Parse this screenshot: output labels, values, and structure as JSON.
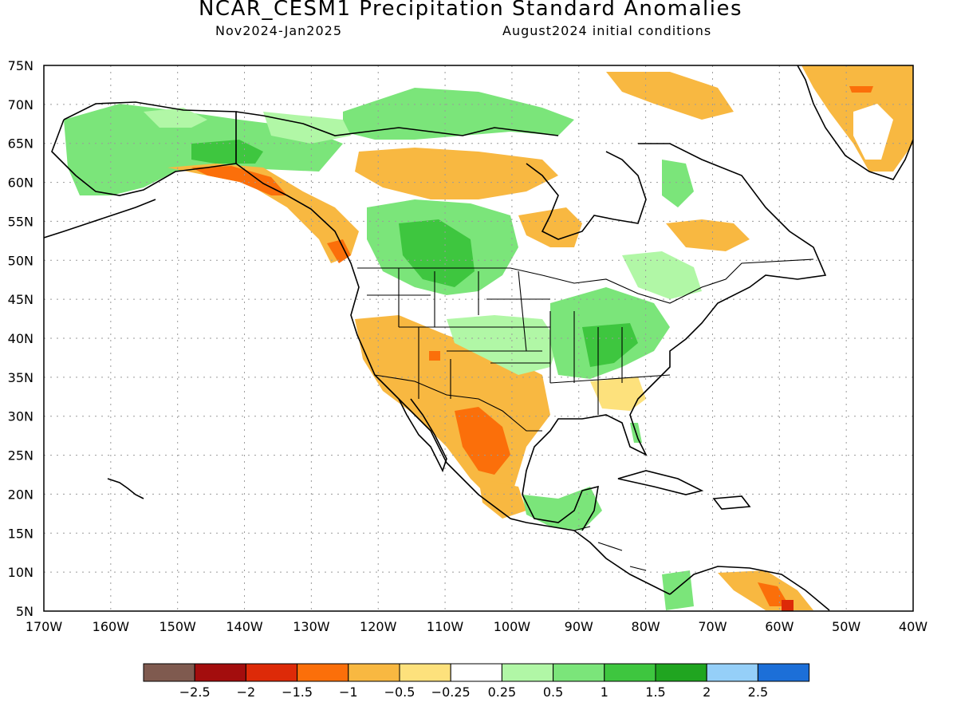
{
  "header": {
    "title": "NCAR_CESM1 Precipitation Standard Anomalies",
    "period": "Nov2024-Jan2025",
    "init": "August2024 initial conditions"
  },
  "axes": {
    "lat_labels": [
      "75N",
      "70N",
      "65N",
      "60N",
      "55N",
      "50N",
      "45N",
      "40N",
      "35N",
      "30N",
      "25N",
      "20N",
      "15N",
      "10N",
      "5N"
    ],
    "lon_labels": [
      "170W",
      "160W",
      "150W",
      "140W",
      "130W",
      "120W",
      "110W",
      "100W",
      "90W",
      "80W",
      "70W",
      "60W",
      "50W",
      "40W"
    ],
    "lat_range": [
      5,
      75
    ],
    "lon_range": [
      -170,
      -40
    ],
    "grid": "dotted"
  },
  "colorbar": {
    "colors": [
      "#7f5a4f",
      "#a30d0d",
      "#dd2a08",
      "#fb6f0a",
      "#f8b841",
      "#fde17c",
      "#ffffff",
      "#b1f7a6",
      "#7be57a",
      "#3ec63f",
      "#20a520",
      "#95cff8",
      "#1c6fd8"
    ],
    "labels": [
      "-2.5",
      "-2",
      "-1.5",
      "-1",
      "-0.5",
      "-0.25",
      "0.25",
      "0.5",
      "1",
      "1.5",
      "2",
      "2.5"
    ]
  },
  "anomaly_regions": [
    {
      "region": "Alaska interior",
      "category": "0.5",
      "color": "#7be57a"
    },
    {
      "region": "Southern Alaska coast",
      "category": "-1.5",
      "color": "#fb6f0a"
    },
    {
      "region": "Pacific Northwest coast",
      "category": "-1",
      "color": "#f8b841"
    },
    {
      "region": "Canadian Prairies / Montana",
      "category": "1",
      "color": "#3ec63f"
    },
    {
      "region": "Hudson Bay south",
      "category": "-0.5",
      "color": "#f8b841"
    },
    {
      "region": "US Southwest",
      "category": "-0.5",
      "color": "#f8b841"
    },
    {
      "region": "Northern Mexico",
      "category": "-1.5",
      "color": "#fb6f0a"
    },
    {
      "region": "Ohio Valley",
      "category": "1",
      "color": "#3ec63f"
    },
    {
      "region": "Southeast US",
      "category": "-0.25",
      "color": "#fde17c"
    },
    {
      "region": "Yucatan",
      "category": "0.5",
      "color": "#7be57a"
    },
    {
      "region": "Venezuela",
      "category": "-1.5",
      "color": "#fb6f0a"
    },
    {
      "region": "Greenland",
      "category": "-0.5",
      "color": "#f8b841"
    }
  ]
}
